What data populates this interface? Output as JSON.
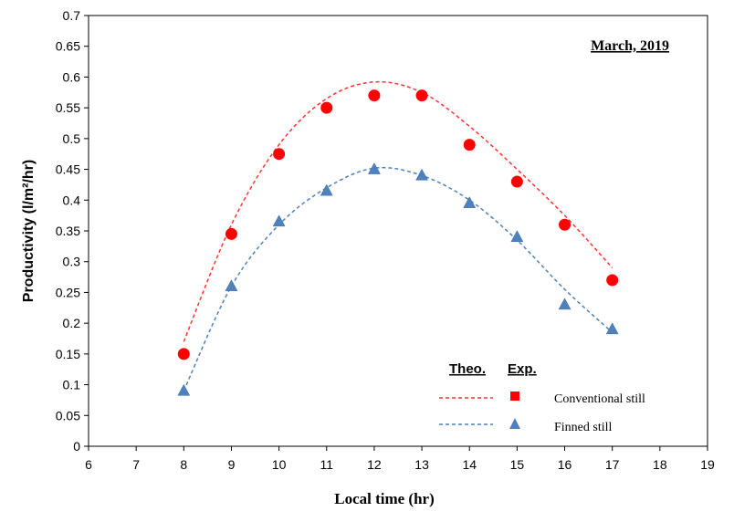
{
  "chart_data": {
    "type": "scatter",
    "title": "March, 2019",
    "xlabel": "Local time (hr)",
    "ylabel": "Productivity (l/m²/hr)",
    "xlim": [
      6,
      19
    ],
    "ylim": [
      0,
      0.7
    ],
    "x_ticks": [
      "6",
      "7",
      "8",
      "9",
      "10",
      "11",
      "12",
      "13",
      "14",
      "15",
      "16",
      "17",
      "18",
      "19"
    ],
    "y_ticks": [
      "0",
      "0.05",
      "0.1",
      "0.15",
      "0.2",
      "0.25",
      "0.3",
      "0.35",
      "0.4",
      "0.45",
      "0.5",
      "0.55",
      "0.6",
      "0.65",
      "0.7"
    ],
    "legend": {
      "placement": "lower-right",
      "header_theo": "Theo.",
      "header_exp": "Exp.",
      "entries": [
        "Conventional still",
        "Finned still"
      ]
    },
    "series": [
      {
        "name": "Conventional still",
        "color": "#ff0000",
        "theo_color": "#ff3333",
        "marker": "circle",
        "x": [
          8,
          9,
          10,
          11,
          12,
          13,
          14,
          15,
          16,
          17
        ],
        "exp": [
          0.15,
          0.345,
          0.475,
          0.55,
          0.57,
          0.57,
          0.49,
          0.43,
          0.36,
          0.27
        ],
        "theo": [
          0.17,
          0.36,
          0.49,
          0.565,
          0.592,
          0.575,
          0.52,
          0.45,
          0.375,
          0.29
        ]
      },
      {
        "name": "Finned still",
        "color": "#4f81bd",
        "theo_color": "#4f81bd",
        "marker": "triangle",
        "x": [
          8,
          9,
          10,
          11,
          12,
          13,
          14,
          15,
          16,
          17
        ],
        "exp": [
          0.09,
          0.26,
          0.365,
          0.415,
          0.45,
          0.44,
          0.395,
          0.34,
          0.23,
          0.19
        ],
        "theo": [
          0.09,
          0.26,
          0.36,
          0.42,
          0.452,
          0.44,
          0.4,
          0.335,
          0.255,
          0.185
        ]
      }
    ]
  }
}
